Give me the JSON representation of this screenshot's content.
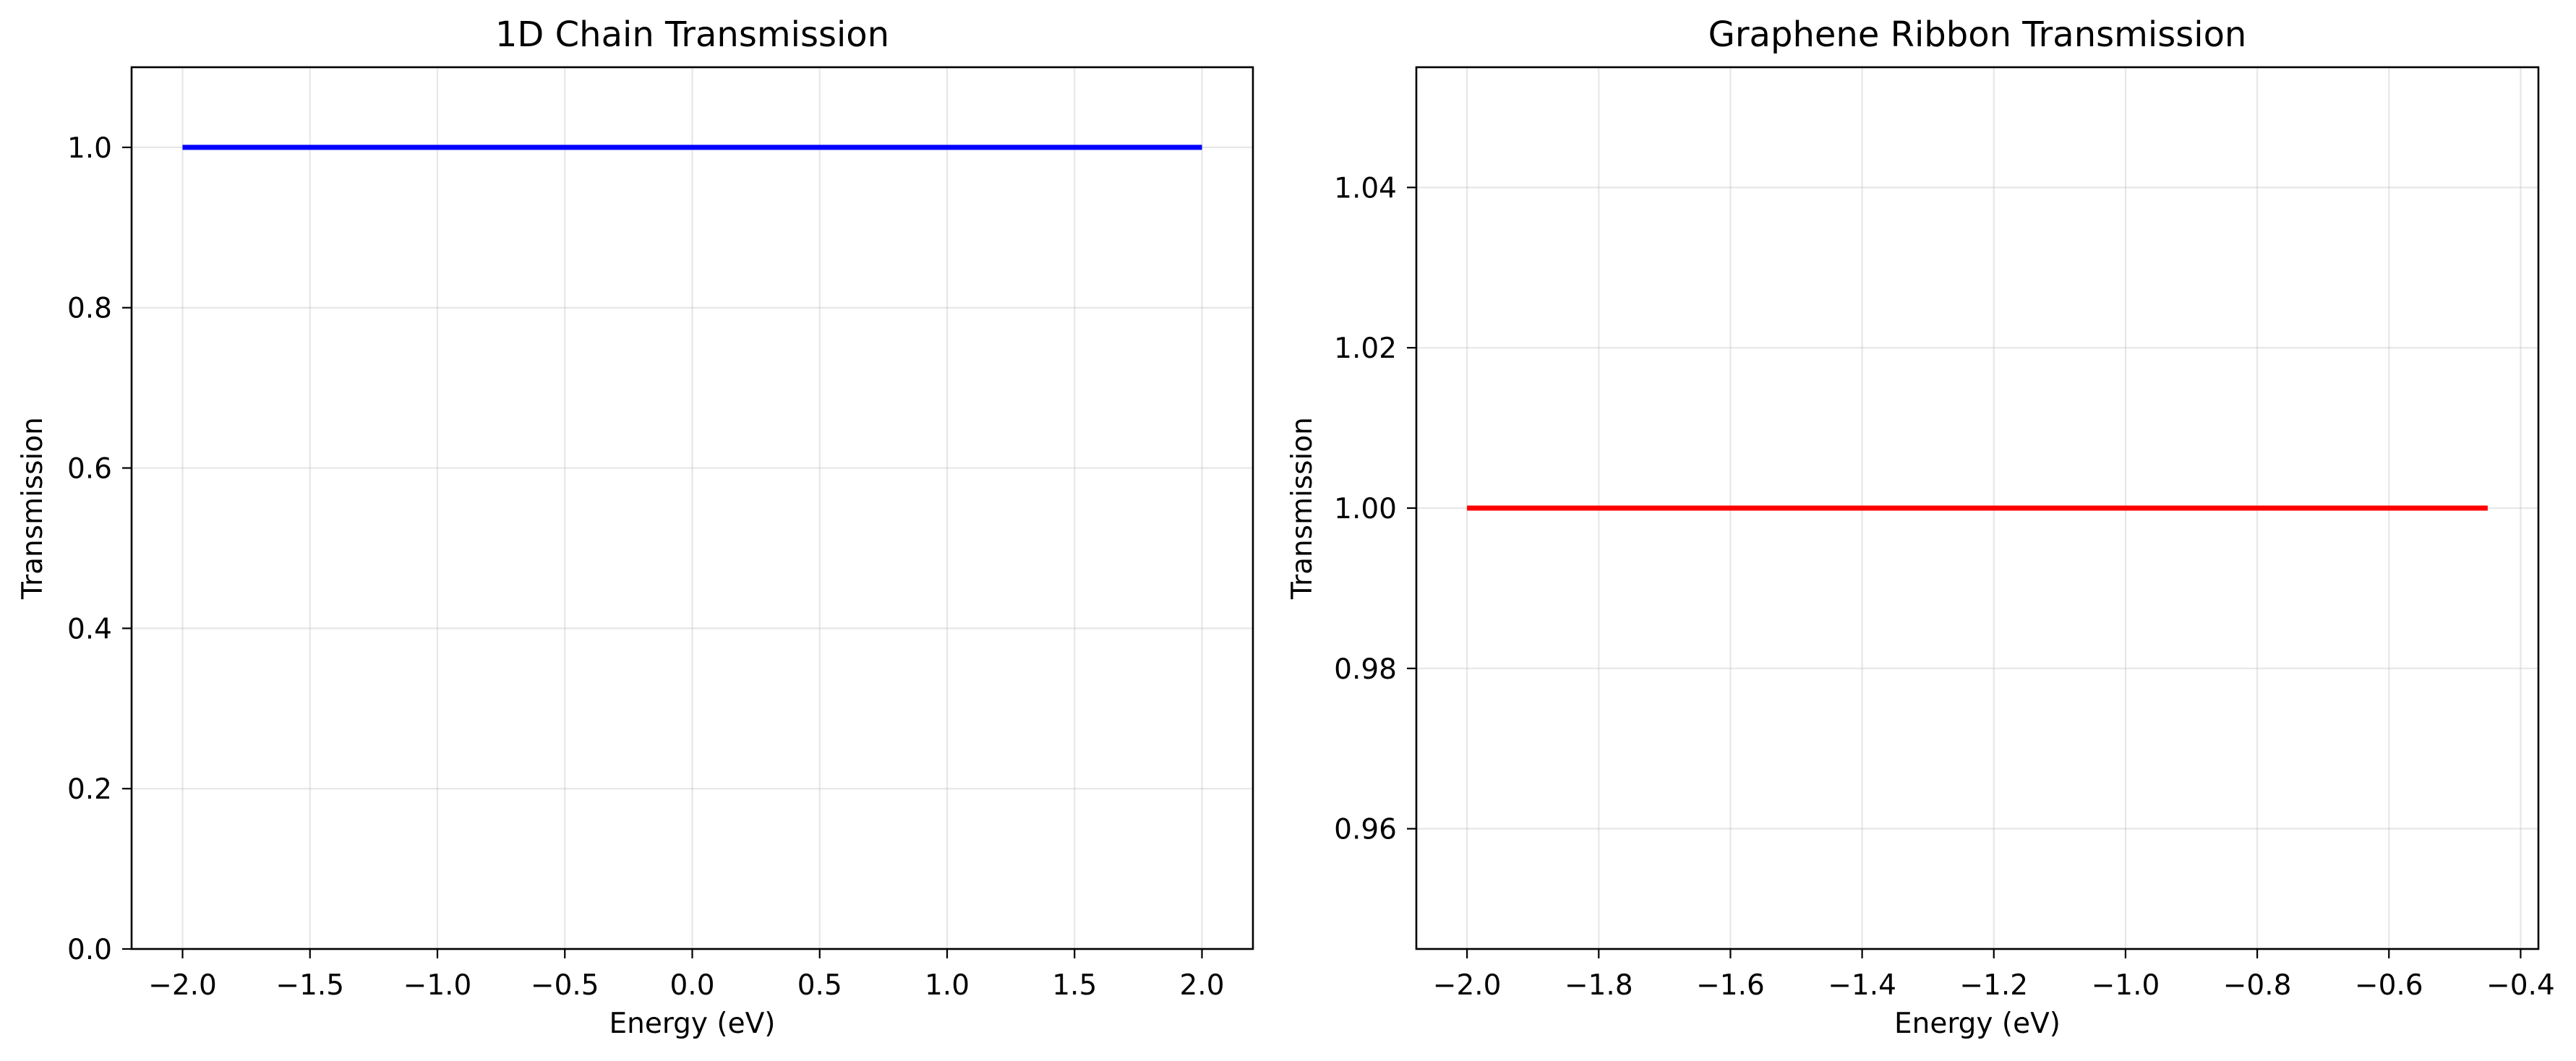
{
  "chart_data": [
    {
      "type": "line",
      "title": "1D Chain Transmission",
      "xlabel": "Energy (eV)",
      "ylabel": "Transmission",
      "xlim": [
        -2.2,
        2.2
      ],
      "ylim": [
        0.0,
        1.1
      ],
      "xticks": [
        -2.0,
        -1.5,
        -1.0,
        -0.5,
        0.0,
        0.5,
        1.0,
        1.5,
        2.0
      ],
      "xtick_labels": [
        "−2.0",
        "−1.5",
        "−1.0",
        "−0.5",
        "0.0",
        "0.5",
        "1.0",
        "1.5",
        "2.0"
      ],
      "yticks": [
        0.0,
        0.2,
        0.4,
        0.6,
        0.8,
        1.0
      ],
      "ytick_labels": [
        "0.0",
        "0.2",
        "0.4",
        "0.6",
        "0.8",
        "1.0"
      ],
      "grid": true,
      "series": [
        {
          "x": [
            -2.0,
            2.0
          ],
          "y": [
            1.0,
            1.0
          ],
          "color": "#0000ff"
        }
      ]
    },
    {
      "type": "line",
      "title": "Graphene Ribbon Transmission",
      "xlabel": "Energy (eV)",
      "ylabel": "Transmission",
      "xlim": [
        -2.077,
        -0.373
      ],
      "ylim": [
        0.945,
        1.055
      ],
      "xticks": [
        -2.0,
        -1.8,
        -1.6,
        -1.4,
        -1.2,
        -1.0,
        -0.8,
        -0.6,
        -0.4
      ],
      "xtick_labels": [
        "−2.0",
        "−1.8",
        "−1.6",
        "−1.4",
        "−1.2",
        "−1.0",
        "−0.8",
        "−0.6",
        "−0.4"
      ],
      "yticks": [
        0.96,
        0.98,
        1.0,
        1.02,
        1.04
      ],
      "ytick_labels": [
        "0.96",
        "0.98",
        "1.00",
        "1.02",
        "1.04"
      ],
      "grid": true,
      "series": [
        {
          "x": [
            -2.0,
            -0.45
          ],
          "y": [
            1.0,
            1.0
          ],
          "color": "#ff0000"
        }
      ]
    }
  ]
}
